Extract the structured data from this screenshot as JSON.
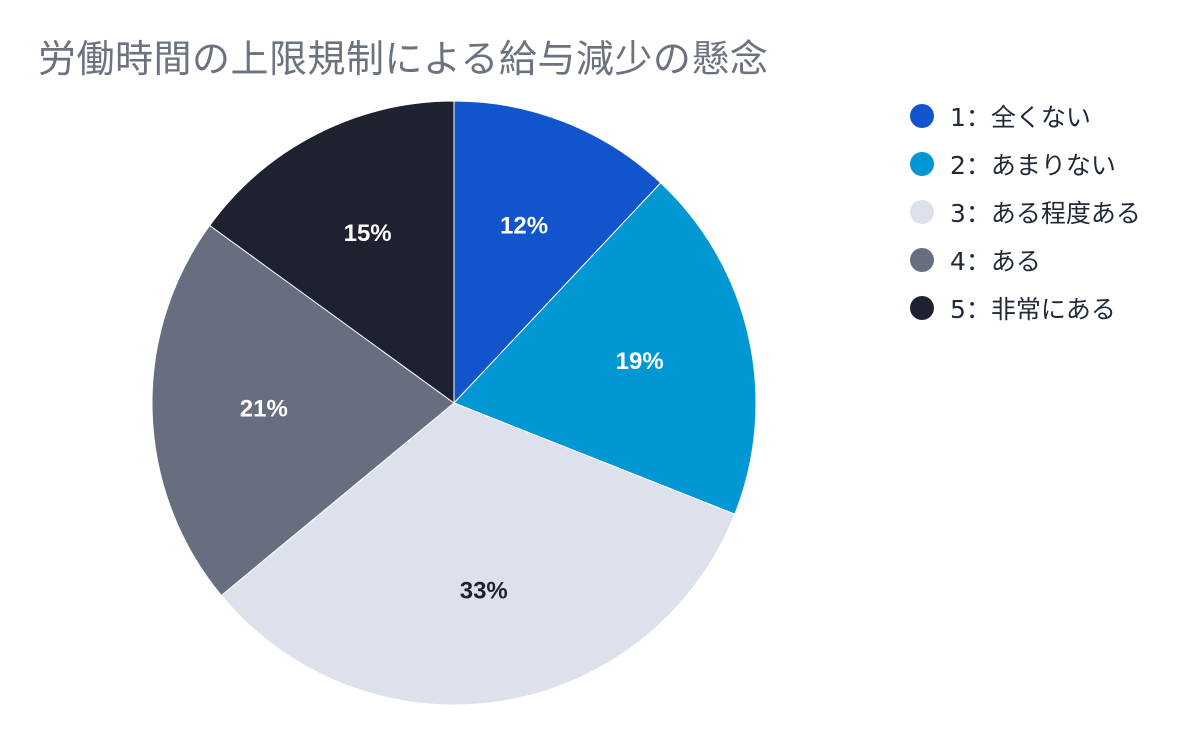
{
  "chart_data": {
    "type": "pie",
    "title": "労働時間の上限規制による給与減少の懸念",
    "categories": [
      "1：全くない",
      "2：あまりない",
      "3：ある程度ある",
      "4：ある",
      "5：非常にある"
    ],
    "values": [
      12,
      19,
      33,
      21,
      15
    ],
    "value_labels": [
      "12%",
      "19%",
      "33%",
      "21%",
      "15%"
    ],
    "colors": [
      "#1154cc",
      "#0097d3",
      "#dde1ec",
      "#666e7f",
      "#1e2230"
    ],
    "label_colors": [
      "#ffffff",
      "#ffffff",
      "#1e2230",
      "#ffffff",
      "#ffffff"
    ],
    "start": "12 o'clock",
    "direction": "clockwise",
    "legend_position": "right"
  }
}
